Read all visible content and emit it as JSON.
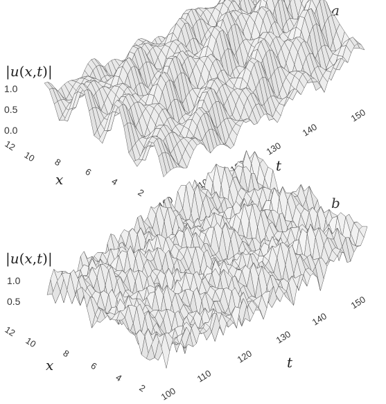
{
  "chart_data": [
    {
      "type": "surface",
      "panel_label": "a",
      "zlabel_parts": [
        "|",
        "u",
        "(",
        "x",
        ",",
        "t",
        ")|"
      ],
      "xlabel": "x",
      "tlabel": "t",
      "x_ticks": [
        "2",
        "4",
        "6",
        "8",
        "10",
        "12"
      ],
      "t_ticks": [
        "100",
        "110",
        "120",
        "130",
        "140",
        "150"
      ],
      "z_ticks": [
        "0.0",
        "0.5",
        "1.0"
      ],
      "x_range": [
        0,
        12
      ],
      "t_range": [
        100,
        150
      ],
      "z_range": [
        0,
        1.0
      ],
      "surface_color": "#e9e9e9",
      "mesh_color": "#555555"
    },
    {
      "type": "surface",
      "panel_label": "b",
      "zlabel_parts": [
        "|",
        "u",
        "(",
        "x",
        ",",
        "t",
        ")|"
      ],
      "xlabel": "x",
      "tlabel": "t",
      "x_ticks": [
        "2",
        "4",
        "6",
        "8",
        "10",
        "12"
      ],
      "t_ticks": [
        "100",
        "110",
        "120",
        "130",
        "140",
        "150"
      ],
      "z_ticks": [
        "0.5",
        "1.0"
      ],
      "x_range": [
        0,
        12
      ],
      "t_range": [
        100,
        150
      ],
      "z_range": [
        0,
        1.0
      ],
      "surface_color": "#ececec",
      "mesh_color": "#555555"
    }
  ]
}
